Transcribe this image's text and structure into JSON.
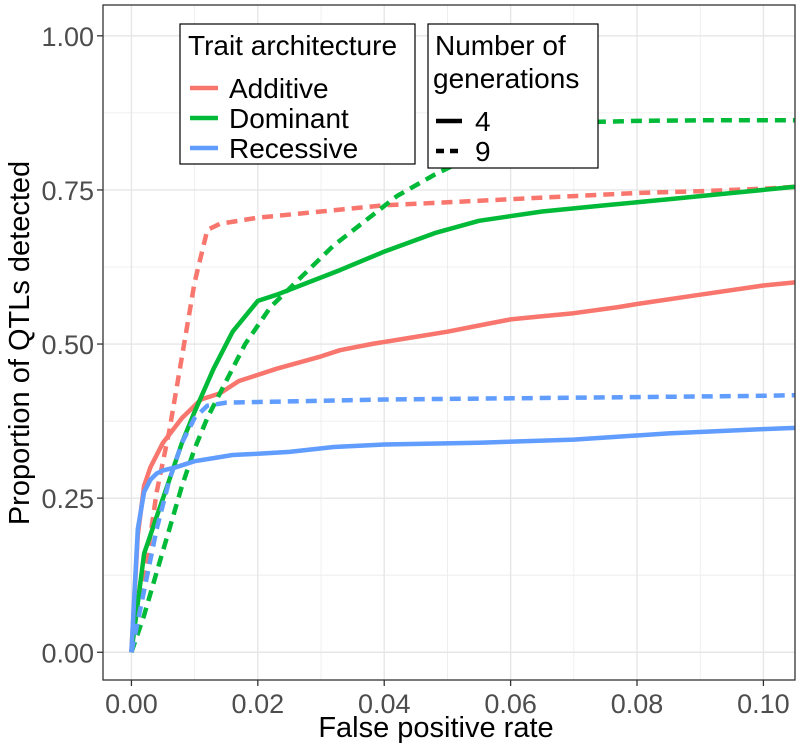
{
  "chart_data": {
    "type": "line",
    "xlabel": "False positive rate",
    "ylabel": "Proportion of QTLs detected",
    "xlim": [
      -0.0045,
      0.105
    ],
    "ylim": [
      -0.045,
      1.05
    ],
    "x_ticks": [
      0.0,
      0.02,
      0.04,
      0.06,
      0.08,
      0.1
    ],
    "x_tick_labels": [
      "0.00",
      "0.02",
      "0.04",
      "0.06",
      "0.08",
      "0.10"
    ],
    "y_ticks": [
      0.0,
      0.25,
      0.5,
      0.75,
      1.0
    ],
    "y_tick_labels": [
      "0.00",
      "0.25",
      "0.50",
      "0.75",
      "1.00"
    ],
    "grid": true,
    "legend": {
      "color_title": "Trait architecture",
      "linetype_title": [
        "Number of",
        "generations"
      ],
      "color_entries": [
        {
          "label": "Additive",
          "color": "#F8766D"
        },
        {
          "label": "Dominant",
          "color": "#00BA38"
        },
        {
          "label": "Recessive",
          "color": "#619CFF"
        }
      ],
      "linetype_entries": [
        {
          "label": "4",
          "dash": "solid"
        },
        {
          "label": "9",
          "dash": "dashed"
        }
      ],
      "placement": "top-left"
    },
    "series": [
      {
        "architecture": "Additive",
        "generations": "4",
        "color": "#F8766D",
        "dash": "solid",
        "x": [
          0,
          0.001,
          0.002,
          0.003,
          0.005,
          0.008,
          0.011,
          0.014,
          0.017,
          0.02,
          0.023,
          0.03,
          0.033,
          0.038,
          0.044,
          0.05,
          0.055,
          0.06,
          0.065,
          0.07,
          0.077,
          0.08,
          0.09,
          0.1,
          0.105
        ],
        "y": [
          0,
          0.19,
          0.27,
          0.3,
          0.34,
          0.38,
          0.41,
          0.42,
          0.44,
          0.45,
          0.46,
          0.48,
          0.49,
          0.5,
          0.51,
          0.52,
          0.53,
          0.54,
          0.545,
          0.55,
          0.56,
          0.565,
          0.58,
          0.595,
          0.6
        ]
      },
      {
        "architecture": "Additive",
        "generations": "9",
        "color": "#F8766D",
        "dash": "dashed",
        "x": [
          0,
          0.002,
          0.004,
          0.006,
          0.008,
          0.01,
          0.012,
          0.014,
          0.02,
          0.03,
          0.04,
          0.05,
          0.06,
          0.07,
          0.08,
          0.09,
          0.1,
          0.105
        ],
        "y": [
          0,
          0.12,
          0.26,
          0.36,
          0.48,
          0.6,
          0.685,
          0.695,
          0.705,
          0.715,
          0.725,
          0.73,
          0.735,
          0.74,
          0.745,
          0.748,
          0.752,
          0.755
        ]
      },
      {
        "architecture": "Dominant",
        "generations": "4",
        "color": "#00BA38",
        "dash": "solid",
        "x": [
          0,
          0.001,
          0.002,
          0.004,
          0.006,
          0.008,
          0.01,
          0.013,
          0.016,
          0.02,
          0.023,
          0.028,
          0.033,
          0.04,
          0.048,
          0.055,
          0.065,
          0.075,
          0.085,
          0.095,
          0.105
        ],
        "y": [
          0,
          0.08,
          0.16,
          0.22,
          0.28,
          0.34,
          0.39,
          0.46,
          0.52,
          0.57,
          0.58,
          0.6,
          0.62,
          0.65,
          0.68,
          0.7,
          0.715,
          0.725,
          0.735,
          0.745,
          0.755
        ]
      },
      {
        "architecture": "Dominant",
        "generations": "9",
        "color": "#00BA38",
        "dash": "dashed",
        "x": [
          0,
          0.002,
          0.004,
          0.006,
          0.008,
          0.01,
          0.012,
          0.015,
          0.018,
          0.022,
          0.027,
          0.032,
          0.037,
          0.042,
          0.048,
          0.055,
          0.062,
          0.068,
          0.072,
          0.08,
          0.09,
          0.1,
          0.105
        ],
        "y": [
          0,
          0.06,
          0.13,
          0.2,
          0.27,
          0.33,
          0.38,
          0.44,
          0.5,
          0.56,
          0.61,
          0.66,
          0.7,
          0.74,
          0.775,
          0.81,
          0.835,
          0.85,
          0.86,
          0.862,
          0.863,
          0.863,
          0.863
        ]
      },
      {
        "architecture": "Recessive",
        "generations": "4",
        "color": "#619CFF",
        "dash": "solid",
        "x": [
          0,
          0.001,
          0.002,
          0.003,
          0.004,
          0.005,
          0.007,
          0.01,
          0.013,
          0.016,
          0.02,
          0.025,
          0.032,
          0.04,
          0.055,
          0.07,
          0.085,
          0.1,
          0.105
        ],
        "y": [
          0,
          0.2,
          0.26,
          0.28,
          0.29,
          0.295,
          0.3,
          0.31,
          0.315,
          0.32,
          0.322,
          0.325,
          0.333,
          0.337,
          0.34,
          0.345,
          0.355,
          0.362,
          0.364
        ]
      },
      {
        "architecture": "Recessive",
        "generations": "9",
        "color": "#619CFF",
        "dash": "dashed",
        "x": [
          0,
          0.002,
          0.004,
          0.006,
          0.008,
          0.01,
          0.012,
          0.015,
          0.02,
          0.03,
          0.04,
          0.06,
          0.08,
          0.1,
          0.105
        ],
        "y": [
          0,
          0.1,
          0.2,
          0.28,
          0.34,
          0.38,
          0.4,
          0.405,
          0.406,
          0.408,
          0.41,
          0.412,
          0.414,
          0.416,
          0.417
        ]
      }
    ]
  }
}
